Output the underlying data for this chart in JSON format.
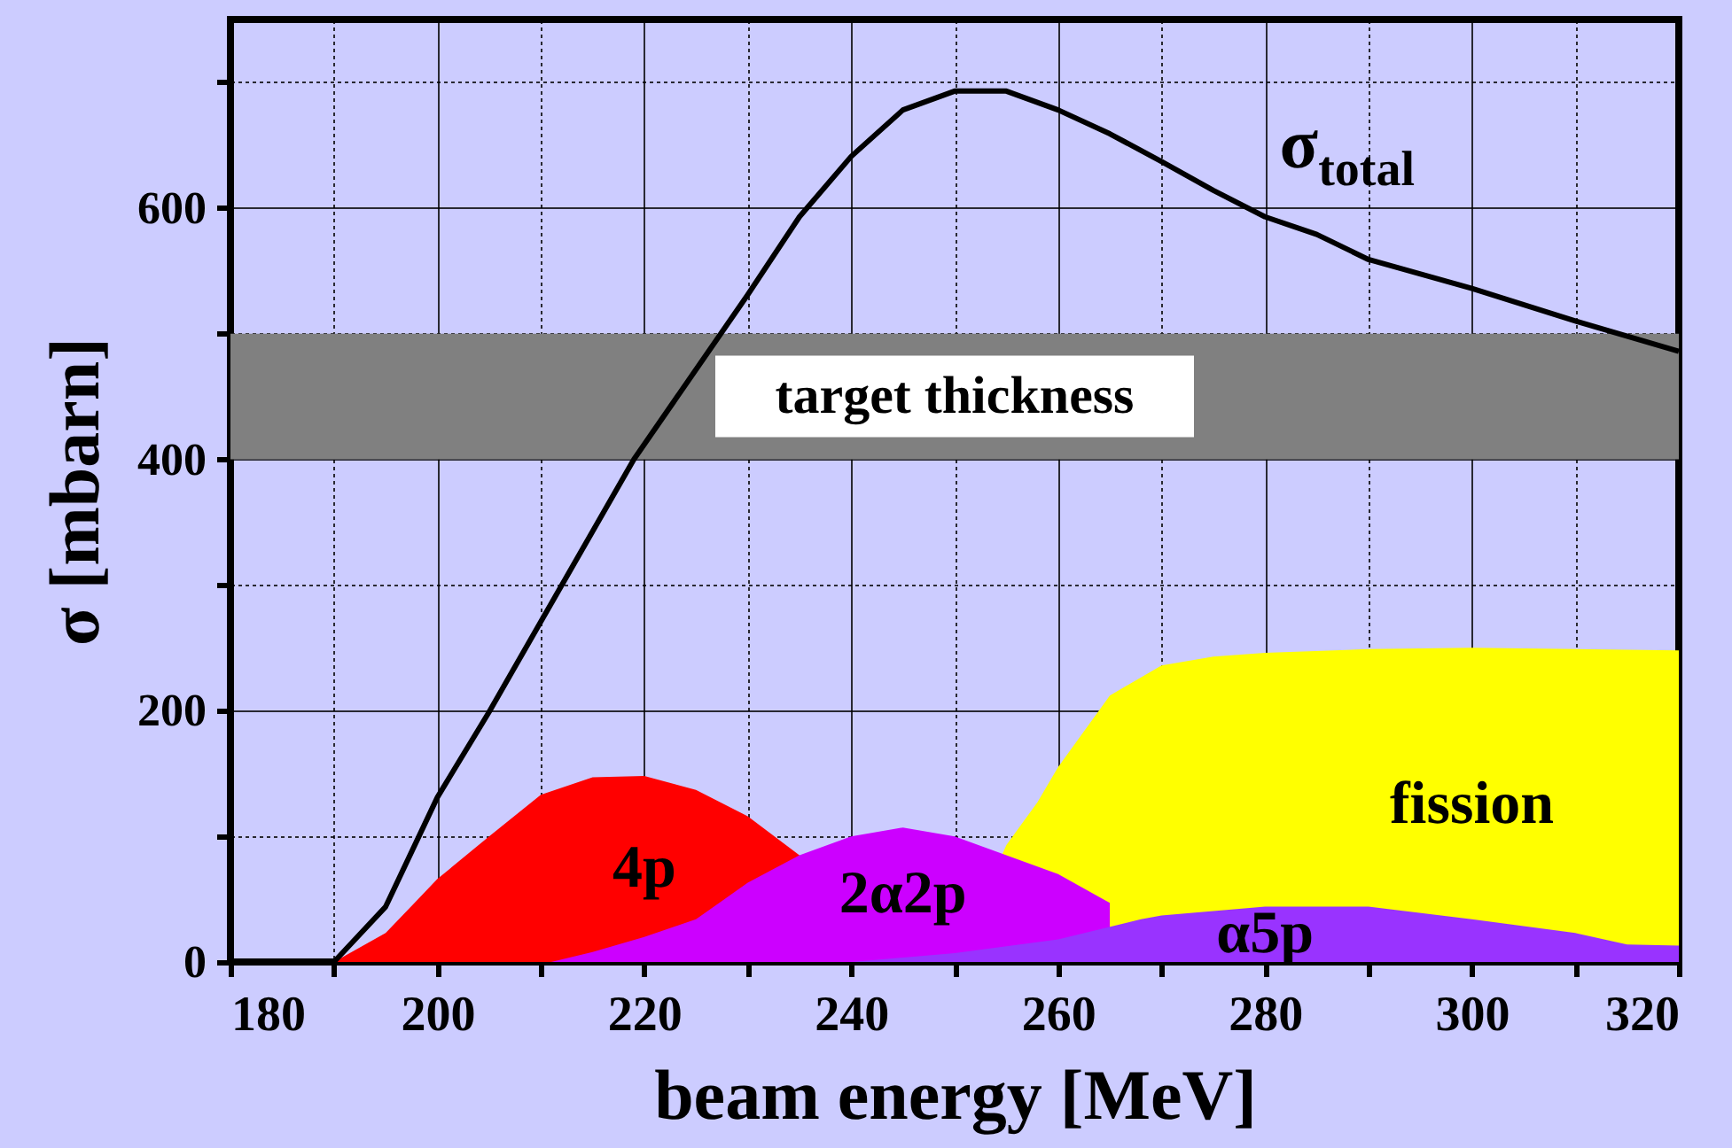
{
  "chart_data": {
    "type": "area",
    "xlabel": "beam energy [MeV]",
    "ylabel": "σ [mbarn]",
    "xlim": [
      180,
      320
    ],
    "ylim": [
      0,
      750
    ],
    "xticks": [
      180,
      {
        "value": 190,
        "label": null
      },
      200,
      {
        "value": 210,
        "label": null
      },
      220,
      {
        "value": 230,
        "label": null
      },
      240,
      {
        "value": 250,
        "label": null
      },
      260,
      {
        "value": 270,
        "label": null
      },
      280,
      {
        "value": 290,
        "label": null
      },
      300,
      {
        "value": 310,
        "label": null
      },
      320
    ],
    "yticks": [
      0,
      {
        "value": 100,
        "label": null
      },
      200,
      {
        "value": 300,
        "label": null
      },
      400,
      {
        "value": 500,
        "label": null
      },
      600,
      {
        "value": 700,
        "label": null
      }
    ],
    "grid": true,
    "bands": [
      {
        "axis": "y",
        "from": 400,
        "to": 500,
        "label": "target thickness",
        "color": "#808080"
      }
    ],
    "series": [
      {
        "name": "fission",
        "color": "#ffff00",
        "x": [
          250,
          255,
          258,
          260,
          265,
          270,
          275,
          280,
          290,
          300,
          320
        ],
        "values": [
          0,
          93,
          127,
          155,
          212,
          236,
          243,
          246,
          249,
          250,
          248
        ]
      },
      {
        "name": "4p",
        "color": "#ff0000",
        "x": [
          190,
          195,
          200,
          205,
          210,
          215,
          220,
          225,
          230,
          235
        ],
        "values": [
          0,
          23,
          66,
          100,
          133,
          147,
          148,
          137,
          116,
          85
        ]
      },
      {
        "name": "2α2p",
        "color": "#cc00ff",
        "x": [
          211,
          215,
          220,
          225,
          230,
          235,
          240,
          245,
          250,
          255,
          260,
          265
        ],
        "values": [
          0,
          8,
          20,
          34,
          63,
          85,
          100,
          107,
          100,
          85,
          70,
          47
        ]
      },
      {
        "name": "α5p",
        "color": "#9933ff",
        "x": [
          240,
          250,
          260,
          268,
          270,
          280,
          290,
          300,
          310,
          315,
          320
        ],
        "values": [
          0,
          7,
          18,
          34,
          37,
          44,
          44,
          34,
          23,
          14,
          13
        ]
      },
      {
        "name": "σ$_{total}$",
        "type": "line",
        "color": "#000000",
        "x": [
          190,
          195,
          200,
          205,
          219,
          230,
          235,
          240,
          245,
          250,
          255,
          260,
          265,
          270,
          275,
          280,
          285,
          290,
          300,
          310,
          320
        ],
        "values": [
          0,
          44,
          131,
          199,
          400,
          531,
          593,
          641,
          678,
          693,
          693,
          678,
          659,
          637,
          614,
          593,
          579,
          559,
          536,
          510,
          486
        ]
      }
    ]
  }
}
